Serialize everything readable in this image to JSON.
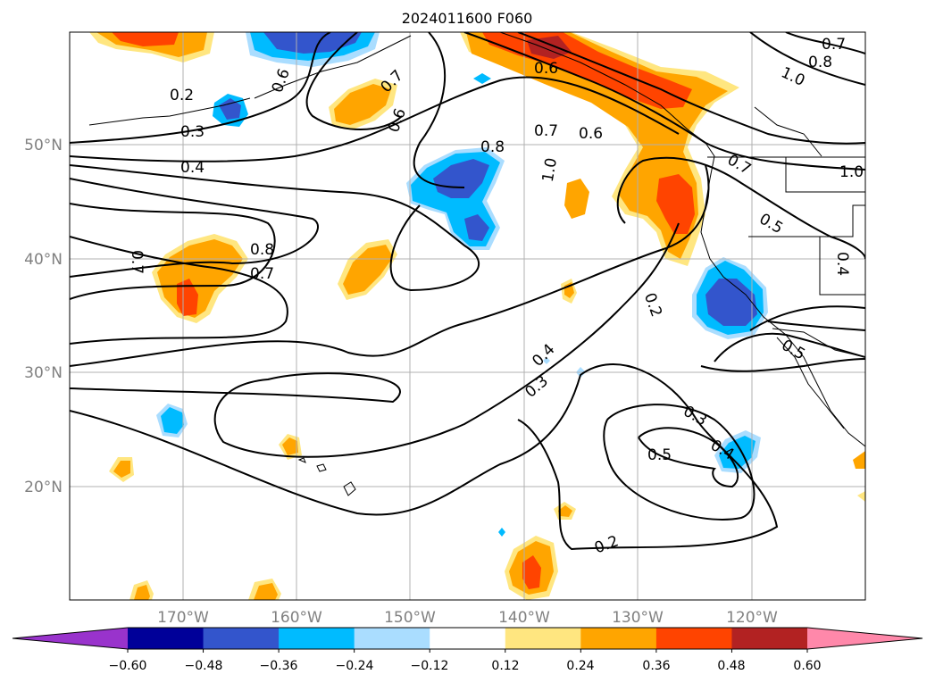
{
  "title": "2024011600 F060",
  "lat_labels": [
    "50°N",
    "40°N",
    "30°N",
    "20°N"
  ],
  "lon_labels": [
    "170°W",
    "160°W",
    "150°W",
    "140°W",
    "130°W",
    "120°W"
  ],
  "colorbar": {
    "ticks": [
      "−0.60",
      "−0.48",
      "−0.36",
      "−0.24",
      "−0.12",
      "0.12",
      "0.24",
      "0.36",
      "0.48",
      "0.60"
    ],
    "colors": [
      "#9933cc",
      "#000099",
      "#3355cc",
      "#00bbff",
      "#aaddff",
      "#ffffff",
      "#ffe680",
      "#ffa500",
      "#ff4400",
      "#b22222",
      "#ff88aa"
    ],
    "extend": "both"
  },
  "contour_labels": [
    {
      "text": "0.2"
    },
    {
      "text": "0.3"
    },
    {
      "text": "0.4"
    },
    {
      "text": "0.7"
    },
    {
      "text": "0.8"
    },
    {
      "text": "0.7"
    },
    {
      "text": "0.6"
    },
    {
      "text": "0.7"
    },
    {
      "text": "0.6"
    },
    {
      "text": "0.8"
    },
    {
      "text": "0.7"
    },
    {
      "text": "0.6"
    },
    {
      "text": "1.0"
    },
    {
      "text": "0.6"
    },
    {
      "text": "0.7"
    },
    {
      "text": "0.8"
    },
    {
      "text": "1.0"
    },
    {
      "text": "0.7"
    },
    {
      "text": "1.0"
    },
    {
      "text": "0.5"
    },
    {
      "text": "0.4"
    },
    {
      "text": "0.2"
    },
    {
      "text": "0.4"
    },
    {
      "text": "0.3"
    },
    {
      "text": "0.3"
    },
    {
      "text": "0.5"
    },
    {
      "text": "0.4"
    },
    {
      "text": "0.5"
    },
    {
      "text": "0.2"
    }
  ]
}
